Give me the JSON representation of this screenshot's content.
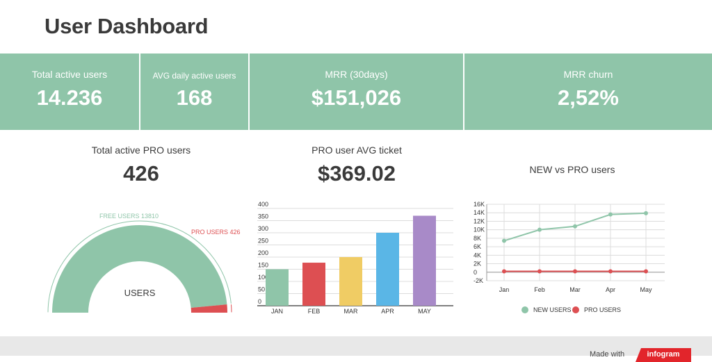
{
  "page": {
    "title": "User Dashboard"
  },
  "kpis": [
    {
      "label": "Total active users",
      "value": "14.236"
    },
    {
      "label": "AVG daily active users",
      "value": "168"
    },
    {
      "label": "MRR (30days)",
      "value": "$151,026"
    },
    {
      "label": "MRR churn",
      "value": "2,52%"
    }
  ],
  "stats": {
    "pro_users": {
      "label": "Total active PRO users",
      "value": "426"
    },
    "pro_ticket": {
      "label": "PRO user AVG ticket",
      "value": "$369.02"
    }
  },
  "line_title": "NEW vs PRO users",
  "colors": {
    "band": "#8fc5a9",
    "text": "#3a3a3a",
    "green": "#8fc5a9",
    "red": "#dd4f52",
    "yellow": "#f0cc64",
    "blue": "#5ab6e6",
    "purple": "#a88ac8",
    "footer": "#e8e8e8",
    "brand": "#e2252b"
  },
  "chart_data": [
    {
      "type": "pie",
      "variant": "semi-donut",
      "center_label": "USERS",
      "slices": [
        {
          "name": "FREE USERS",
          "value": 13810,
          "label": "FREE USERS 13810",
          "color": "#8fc5a9"
        },
        {
          "name": "PRO USERS",
          "value": 426,
          "label": "PRO USERS 426",
          "color": "#dd4f52"
        }
      ]
    },
    {
      "type": "bar",
      "categories": [
        "JAN",
        "FEB",
        "MAR",
        "APR",
        "MAY"
      ],
      "values": [
        150,
        177,
        200,
        300,
        370
      ],
      "colors": [
        "#8fc5a9",
        "#dd4f52",
        "#f0cc64",
        "#5ab6e6",
        "#a88ac8"
      ],
      "ylim": [
        0,
        400
      ],
      "yticks": [
        0,
        50,
        100,
        150,
        200,
        250,
        300,
        350,
        400
      ],
      "ytick_labels": [
        "0",
        "50",
        "100",
        "150",
        "200",
        "250",
        "300",
        "350",
        "400"
      ],
      "grid": true
    },
    {
      "type": "line",
      "title": "NEW vs PRO users",
      "x": [
        "Jan",
        "Feb",
        "Mar",
        "Apr",
        "May"
      ],
      "series": [
        {
          "name": "NEW USERS",
          "values": [
            7400,
            10000,
            10800,
            13600,
            13900
          ],
          "color": "#8fc5a9"
        },
        {
          "name": "PRO USERS",
          "values": [
            200,
            200,
            200,
            200,
            200
          ],
          "color": "#dd4f52"
        }
      ],
      "ylim": [
        -2000,
        16000
      ],
      "yticks": [
        -2000,
        0,
        2000,
        4000,
        6000,
        8000,
        10000,
        12000,
        14000,
        16000
      ],
      "ytick_labels": [
        "-2K",
        "0",
        "2K",
        "4K",
        "6K",
        "8K",
        "10K",
        "12K",
        "14K",
        "16K"
      ],
      "grid": true,
      "legend": "bottom"
    }
  ],
  "footer": {
    "made_with": "Made with",
    "brand": "infogram"
  }
}
